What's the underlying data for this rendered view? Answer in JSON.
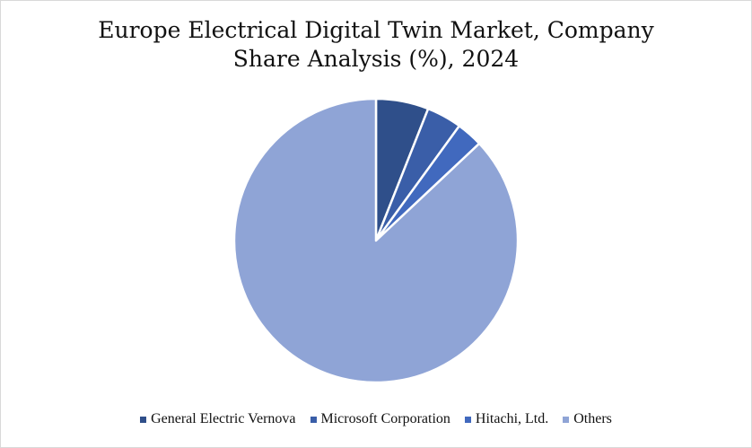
{
  "chart_data": {
    "type": "pie",
    "title_lines": [
      "Europe Electrical Digital Twin Market, Company",
      "Share Analysis (%), 2024"
    ],
    "legend_position": "bottom",
    "slices": [
      {
        "name": "General Electric Vernova",
        "value": 6,
        "color": "#2f4f8a"
      },
      {
        "name": "Microsoft Corporation",
        "value": 4,
        "color": "#3a5ea8"
      },
      {
        "name": "Hitachi, Ltd.",
        "value": 3,
        "color": "#4169be"
      },
      {
        "name": "Others",
        "value": 87,
        "color": "#8fa4d6"
      }
    ]
  }
}
